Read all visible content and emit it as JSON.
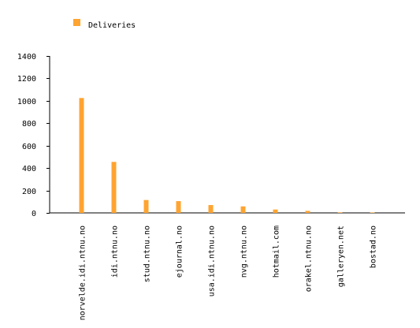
{
  "chart_data": {
    "type": "bar",
    "title": "",
    "xlabel": "",
    "ylabel": "",
    "categories": [
      "norvelde.idi.ntnu.no",
      "idi.ntnu.no",
      "stud.ntnu.no",
      "ejournal.no",
      "usa.idi.ntnu.no",
      "nvg.ntnu.no",
      "hotmail.com",
      "orakel.ntnu.no",
      "galleryen.net",
      "bostad.no"
    ],
    "series": [
      {
        "name": "Deliveries",
        "color": "#ffa431",
        "values": [
          1025,
          455,
          115,
          105,
          70,
          58,
          30,
          18,
          5,
          4
        ]
      }
    ],
    "ylim": [
      0,
      1400
    ],
    "yticks": [
      "0",
      "200",
      "400",
      "600",
      "800",
      "1000",
      "1200",
      "1400"
    ],
    "grid": false,
    "legend_position": "top-left"
  }
}
